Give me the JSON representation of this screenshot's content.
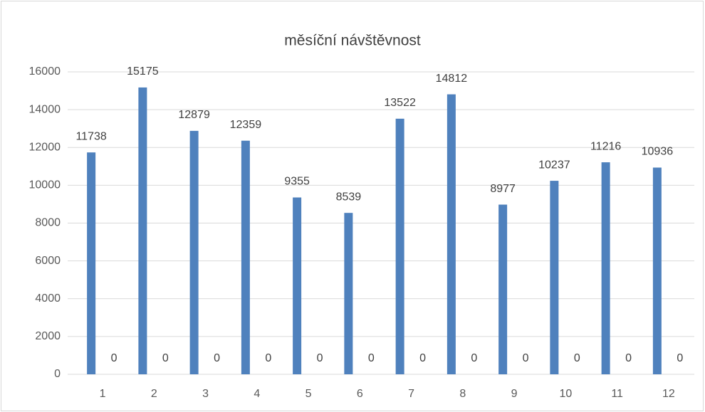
{
  "chart_data": {
    "type": "bar",
    "title": "měsíční návštěvnost",
    "categories": [
      "1",
      "2",
      "3",
      "4",
      "5",
      "6",
      "7",
      "8",
      "9",
      "10",
      "11",
      "12"
    ],
    "series": [
      {
        "color": "#4f81bd",
        "values": [
          11738,
          15175,
          12879,
          12359,
          9355,
          8539,
          13522,
          14812,
          8977,
          10237,
          11216,
          10936
        ]
      },
      {
        "color": "#ed7d31",
        "values": [
          0,
          0,
          0,
          0,
          0,
          0,
          0,
          0,
          0,
          0,
          0,
          0
        ]
      }
    ],
    "ylim": [
      0,
      16000
    ],
    "yticks": [
      0,
      2000,
      4000,
      6000,
      8000,
      10000,
      12000,
      14000,
      16000
    ],
    "grid": true
  }
}
